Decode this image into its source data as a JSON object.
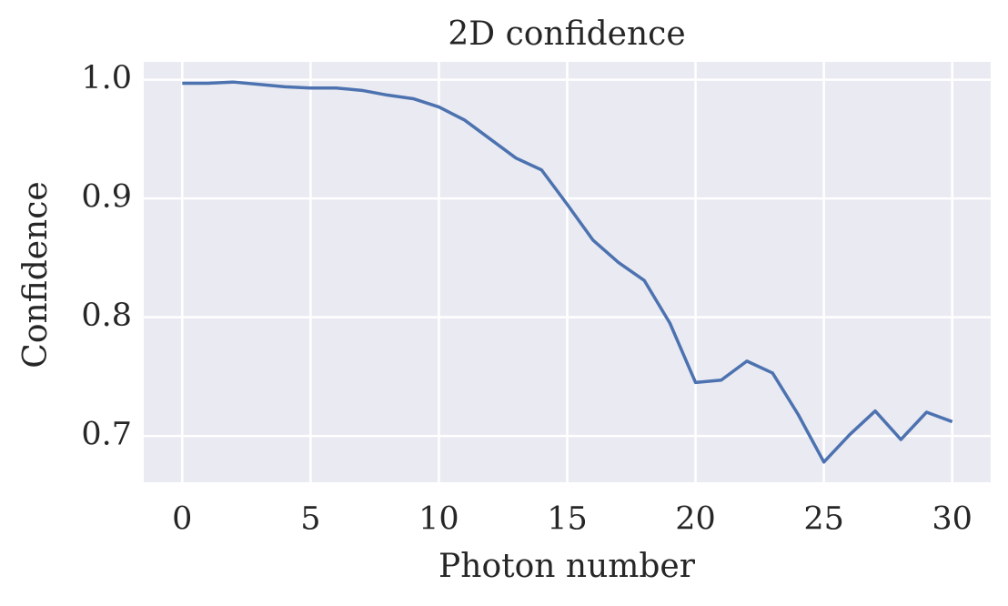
{
  "chart_data": {
    "type": "line",
    "title": "2D confidence",
    "x_label": "Photon number",
    "y_label": "Confidence",
    "x": [
      0,
      1,
      2,
      3,
      4,
      5,
      6,
      7,
      8,
      9,
      10,
      11,
      12,
      13,
      14,
      15,
      16,
      17,
      18,
      19,
      20,
      21,
      22,
      23,
      24,
      25,
      26,
      27,
      28,
      29,
      30
    ],
    "series": [
      {
        "name": "Confidence",
        "color": "#4c72b0",
        "values": [
          0.997,
          0.997,
          0.998,
          0.996,
          0.994,
          0.993,
          0.993,
          0.991,
          0.987,
          0.984,
          0.977,
          0.966,
          0.95,
          0.934,
          0.924,
          0.895,
          0.865,
          0.846,
          0.831,
          0.795,
          0.745,
          0.747,
          0.763,
          0.753,
          0.718,
          0.678,
          0.701,
          0.721,
          0.697,
          0.72,
          0.712
        ]
      }
    ],
    "xlim": [
      -1.5,
      31.5
    ],
    "xticks": [
      0,
      5,
      10,
      15,
      20,
      25,
      30
    ],
    "ylim": [
      0.661,
      1.015
    ],
    "yticks": [
      {
        "value": 1,
        "label": "1.0"
      },
      0.9,
      0.8,
      0.7
    ],
    "grid": true
  }
}
